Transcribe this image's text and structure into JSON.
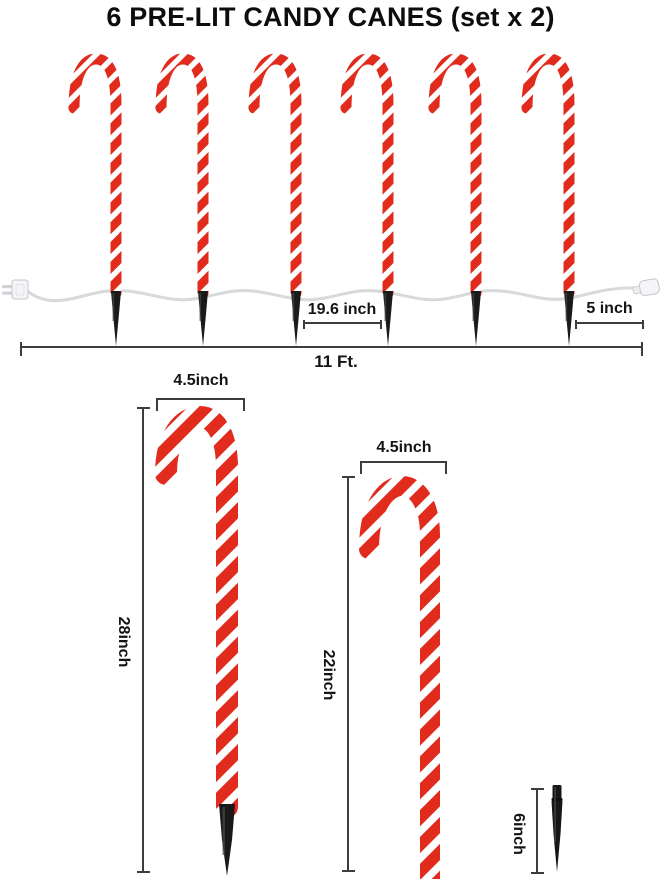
{
  "title": "6 PRE-LIT CANDY CANES (set x 2)",
  "colors": {
    "candy_red": "#e02b1d",
    "candy_white": "#ffffff",
    "stake_black": "#1a1a1a",
    "wire_gray": "#d7dadc",
    "dimension_line": "#3d3d3d",
    "label_text": "#141414"
  },
  "row_diagram": {
    "cane_count": 6,
    "spacing_label": "19.6 inch",
    "end_gap_label": "5 inch",
    "total_length_label": "11 Ft."
  },
  "detail_views": {
    "large_cane": {
      "width_label": "4.5inch",
      "height_label": "28inch"
    },
    "medium_cane": {
      "width_label": "4.5inch",
      "height_label": "22inch"
    },
    "ground_stake": {
      "height_label": "6inch"
    }
  }
}
